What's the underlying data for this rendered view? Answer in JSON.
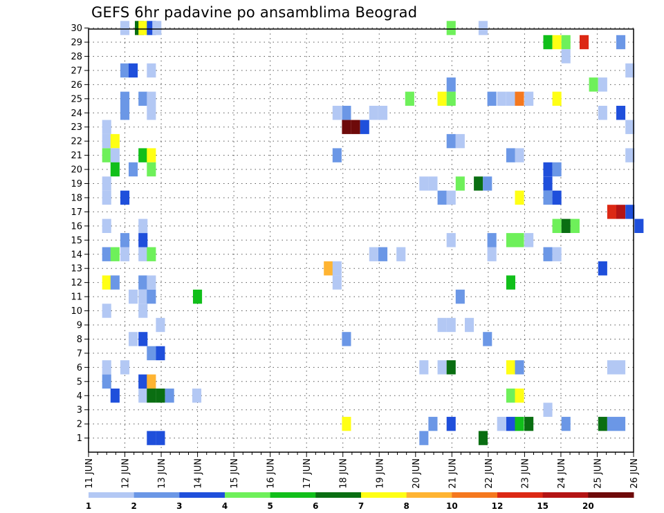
{
  "chart_data": {
    "type": "heatmap",
    "title": "GEFS 6hr padavine po ansamblima Beograd",
    "x_tick_labels": [
      "11 JUN",
      "12 JUN",
      "13 JUN",
      "14 JUN",
      "15 JUN",
      "16 JUN",
      "17 JUN",
      "18 JUN",
      "19 JUN",
      "20 JUN",
      "21 JUN",
      "22 JUN",
      "23 JUN",
      "24 JUN",
      "25 JUN",
      "26 JUN"
    ],
    "y_tick_labels": [
      "1",
      "2",
      "3",
      "4",
      "5",
      "6",
      "7",
      "8",
      "9",
      "10",
      "11",
      "12",
      "13",
      "14",
      "15",
      "16",
      "17",
      "18",
      "19",
      "20",
      "21",
      "22",
      "23",
      "24",
      "25",
      "26",
      "27",
      "28",
      "29",
      "30"
    ],
    "xlim_days": [
      11,
      26
    ],
    "ylim_members": [
      0,
      30.5
    ],
    "grid": true,
    "colorbar": {
      "labels": [
        "1",
        "2",
        "3",
        "4",
        "5",
        "6",
        "7",
        "8",
        "10",
        "12",
        "15",
        "20"
      ],
      "colors": [
        "#b3c8f4",
        "#6b97e6",
        "#1f4fdb",
        "#6ef05a",
        "#11bf1a",
        "#0a6e12",
        "#ffff14",
        "#ffb432",
        "#f5781e",
        "#dc2814",
        "#b41414",
        "#6e0a0a"
      ]
    },
    "cells_note": "each cell: [day (x, days from 11 JUN origin expressed as calendar day value), member (y), color index into colorbar.colors]",
    "cells": [
      [
        12.0,
        30,
        0
      ],
      [
        12.4,
        30,
        5
      ],
      [
        12.5,
        30,
        6
      ],
      [
        12.73,
        30,
        2
      ],
      [
        12.88,
        30,
        0
      ],
      [
        20.98,
        30,
        3
      ],
      [
        21.86,
        30,
        0
      ],
      [
        23.64,
        29,
        4
      ],
      [
        23.89,
        29,
        6
      ],
      [
        24.14,
        29,
        3
      ],
      [
        24.64,
        29,
        9
      ],
      [
        25.65,
        29,
        1
      ],
      [
        24.14,
        28,
        0
      ],
      [
        12.0,
        27,
        1
      ],
      [
        12.23,
        27,
        2
      ],
      [
        12.73,
        27,
        0
      ],
      [
        25.9,
        27,
        0
      ],
      [
        20.98,
        26,
        1
      ],
      [
        24.9,
        26,
        3
      ],
      [
        25.15,
        26,
        0
      ],
      [
        12.0,
        25,
        1
      ],
      [
        12.5,
        25,
        1
      ],
      [
        12.73,
        25,
        0
      ],
      [
        19.84,
        25,
        3
      ],
      [
        20.73,
        25,
        6
      ],
      [
        20.98,
        25,
        3
      ],
      [
        22.1,
        25,
        1
      ],
      [
        22.37,
        25,
        0
      ],
      [
        22.62,
        25,
        0
      ],
      [
        22.86,
        25,
        8
      ],
      [
        23.12,
        25,
        0
      ],
      [
        23.89,
        25,
        6
      ],
      [
        12.0,
        24,
        1
      ],
      [
        12.73,
        24,
        0
      ],
      [
        17.84,
        24,
        0
      ],
      [
        18.1,
        24,
        1
      ],
      [
        18.85,
        24,
        0
      ],
      [
        19.1,
        24,
        0
      ],
      [
        25.15,
        24,
        0
      ],
      [
        25.65,
        24,
        2
      ],
      [
        11.5,
        23,
        0
      ],
      [
        18.1,
        23,
        11
      ],
      [
        18.35,
        23,
        11
      ],
      [
        18.6,
        23,
        2
      ],
      [
        25.9,
        23,
        0
      ],
      [
        11.5,
        22,
        0
      ],
      [
        11.73,
        22,
        6
      ],
      [
        20.98,
        22,
        1
      ],
      [
        21.23,
        22,
        0
      ],
      [
        11.5,
        21,
        3
      ],
      [
        11.73,
        21,
        0
      ],
      [
        12.5,
        21,
        4
      ],
      [
        12.73,
        21,
        6
      ],
      [
        17.84,
        21,
        1
      ],
      [
        22.62,
        21,
        1
      ],
      [
        22.86,
        21,
        0
      ],
      [
        25.9,
        21,
        0
      ],
      [
        11.73,
        20,
        4
      ],
      [
        12.23,
        20,
        1
      ],
      [
        12.73,
        20,
        3
      ],
      [
        23.64,
        20,
        2
      ],
      [
        23.89,
        20,
        1
      ],
      [
        11.5,
        19,
        0
      ],
      [
        20.23,
        19,
        0
      ],
      [
        20.48,
        19,
        0
      ],
      [
        21.23,
        19,
        3
      ],
      [
        21.73,
        19,
        5
      ],
      [
        21.98,
        19,
        1
      ],
      [
        23.64,
        19,
        2
      ],
      [
        11.5,
        18,
        0
      ],
      [
        12.0,
        18,
        2
      ],
      [
        20.73,
        18,
        1
      ],
      [
        20.98,
        18,
        0
      ],
      [
        22.86,
        18,
        6
      ],
      [
        23.64,
        18,
        1
      ],
      [
        23.89,
        18,
        2
      ],
      [
        25.4,
        17,
        9
      ],
      [
        25.65,
        17,
        10
      ],
      [
        25.9,
        17,
        2
      ],
      [
        11.5,
        16,
        0
      ],
      [
        12.5,
        16,
        0
      ],
      [
        23.89,
        16,
        3
      ],
      [
        24.14,
        16,
        5
      ],
      [
        24.39,
        16,
        3
      ],
      [
        26.15,
        16,
        2
      ],
      [
        12.0,
        15,
        1
      ],
      [
        12.5,
        15,
        2
      ],
      [
        20.98,
        15,
        0
      ],
      [
        22.1,
        15,
        1
      ],
      [
        22.62,
        15,
        3
      ],
      [
        22.86,
        15,
        3
      ],
      [
        23.12,
        15,
        0
      ],
      [
        11.5,
        14,
        1
      ],
      [
        11.73,
        14,
        3
      ],
      [
        12.0,
        14,
        0
      ],
      [
        12.5,
        14,
        0
      ],
      [
        12.73,
        14,
        3
      ],
      [
        18.85,
        14,
        0
      ],
      [
        19.1,
        14,
        1
      ],
      [
        19.6,
        14,
        0
      ],
      [
        22.1,
        14,
        0
      ],
      [
        23.64,
        14,
        1
      ],
      [
        23.89,
        14,
        0
      ],
      [
        17.6,
        13,
        7
      ],
      [
        17.84,
        13,
        0
      ],
      [
        25.15,
        13,
        2
      ],
      [
        11.5,
        12,
        6
      ],
      [
        11.73,
        12,
        1
      ],
      [
        12.5,
        12,
        1
      ],
      [
        12.73,
        12,
        0
      ],
      [
        17.84,
        12,
        0
      ],
      [
        22.62,
        12,
        4
      ],
      [
        12.23,
        11,
        0
      ],
      [
        12.5,
        11,
        0
      ],
      [
        12.73,
        11,
        1
      ],
      [
        14.0,
        11,
        4
      ],
      [
        21.23,
        11,
        1
      ],
      [
        11.5,
        10,
        0
      ],
      [
        12.5,
        10,
        0
      ],
      [
        12.98,
        9,
        0
      ],
      [
        20.73,
        9,
        0
      ],
      [
        20.98,
        9,
        0
      ],
      [
        21.48,
        9,
        0
      ],
      [
        12.23,
        8,
        0
      ],
      [
        12.5,
        8,
        2
      ],
      [
        18.1,
        8,
        1
      ],
      [
        21.98,
        8,
        1
      ],
      [
        12.73,
        7,
        1
      ],
      [
        12.98,
        7,
        2
      ],
      [
        11.5,
        6,
        0
      ],
      [
        12.0,
        6,
        0
      ],
      [
        20.23,
        6,
        0
      ],
      [
        20.73,
        6,
        0
      ],
      [
        20.98,
        6,
        5
      ],
      [
        22.62,
        6,
        6
      ],
      [
        22.86,
        6,
        1
      ],
      [
        25.4,
        6,
        0
      ],
      [
        25.65,
        6,
        0
      ],
      [
        11.5,
        5,
        1
      ],
      [
        12.5,
        5,
        2
      ],
      [
        12.73,
        5,
        7
      ],
      [
        11.73,
        4,
        2
      ],
      [
        12.5,
        4,
        0
      ],
      [
        12.73,
        4,
        5
      ],
      [
        12.98,
        4,
        5
      ],
      [
        13.23,
        4,
        1
      ],
      [
        13.98,
        4,
        0
      ],
      [
        22.62,
        4,
        3
      ],
      [
        22.86,
        4,
        6
      ],
      [
        23.64,
        3,
        0
      ],
      [
        18.1,
        2,
        6
      ],
      [
        20.48,
        2,
        1
      ],
      [
        20.98,
        2,
        2
      ],
      [
        22.37,
        2,
        0
      ],
      [
        22.62,
        2,
        2
      ],
      [
        22.86,
        2,
        4
      ],
      [
        23.12,
        2,
        5
      ],
      [
        24.14,
        2,
        1
      ],
      [
        25.15,
        2,
        5
      ],
      [
        25.4,
        2,
        1
      ],
      [
        25.65,
        2,
        1
      ],
      [
        12.73,
        1,
        2
      ],
      [
        12.98,
        1,
        2
      ],
      [
        20.23,
        1,
        1
      ],
      [
        21.86,
        1,
        5
      ]
    ]
  }
}
